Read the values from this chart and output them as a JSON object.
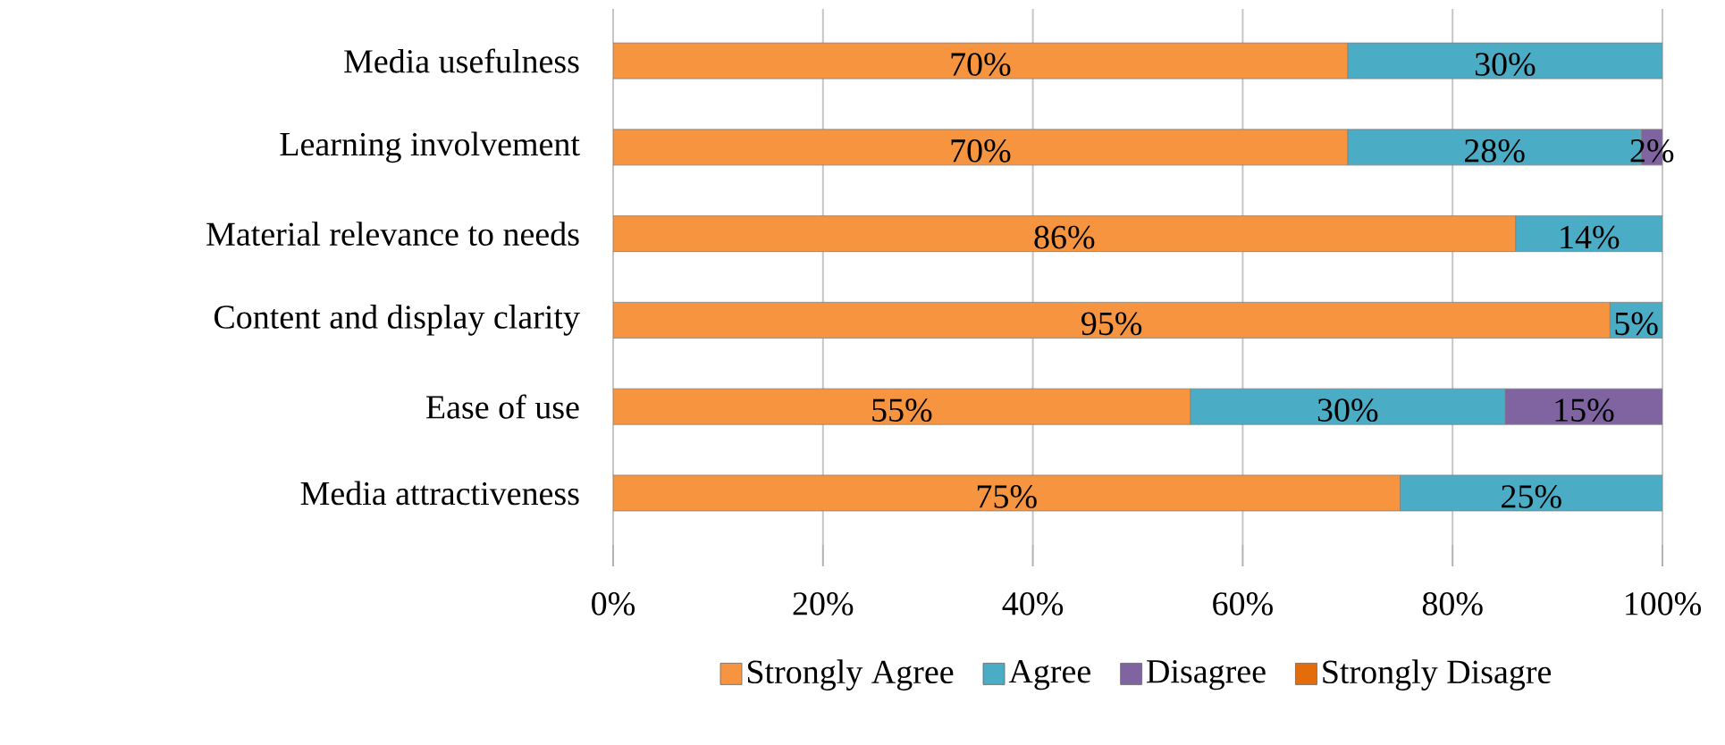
{
  "chart_data": {
    "type": "bar",
    "orientation": "horizontal",
    "stacked": true,
    "categories": [
      "Media usefulness",
      "Learning involvement",
      "Material relevance to needs",
      "Content and display clarity",
      "Ease of use",
      "Media attractiveness"
    ],
    "series": [
      {
        "name": "Strongly Agree",
        "color": "#f7943f",
        "values": [
          70,
          70,
          86,
          95,
          55,
          75
        ],
        "value_labels": [
          "70%",
          "70%",
          "86%",
          "95%",
          "55%",
          "75%"
        ]
      },
      {
        "name": "Agree",
        "color": "#4bacc6",
        "values": [
          30,
          28,
          14,
          5,
          30,
          25
        ],
        "value_labels": [
          "30%",
          "28%",
          "14%",
          "5%",
          "30%",
          "25%"
        ]
      },
      {
        "name": "Disagree",
        "color": "#8064a2",
        "values": [
          null,
          2,
          null,
          null,
          15,
          null
        ],
        "value_labels": [
          null,
          "2%",
          null,
          null,
          "15%",
          null
        ]
      },
      {
        "name": "Strongly Disagre",
        "color": "#e46c0a",
        "values": [
          null,
          null,
          null,
          null,
          null,
          null
        ]
      }
    ],
    "xlim": [
      0,
      100
    ],
    "xticks": [
      {
        "value": 0,
        "label": "0%"
      },
      {
        "value": 20,
        "label": "20%"
      },
      {
        "value": 40,
        "label": "40%"
      },
      {
        "value": 60,
        "label": "60%"
      },
      {
        "value": 80,
        "label": "80%"
      },
      {
        "value": 100,
        "label": "100%"
      }
    ],
    "grid": "x",
    "legend": "bottom"
  }
}
